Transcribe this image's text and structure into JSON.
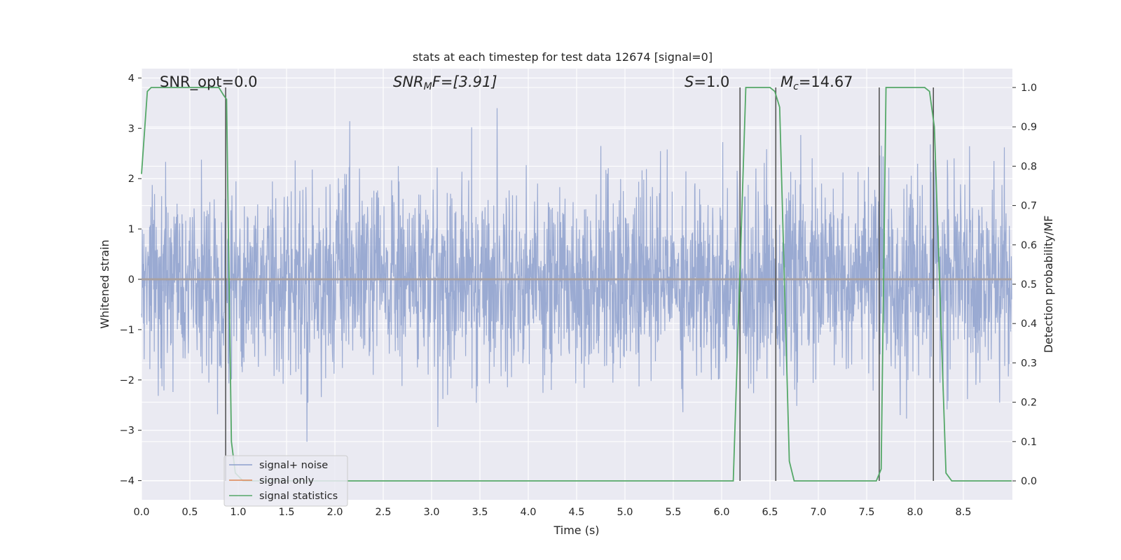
{
  "chart_data": {
    "type": "line",
    "title": "stats at each timestep for test data 12674 [signal=0]",
    "xlabel": "Time (s)",
    "ylabel": "Whitened strain",
    "ylabel_right": "Detection probability/MF",
    "xlim": [
      0.0,
      9.0
    ],
    "ylim": [
      -4.4,
      4.2
    ],
    "ylim_right": [
      -0.05,
      1.05
    ],
    "x_ticks": [
      "0.0",
      "0.5",
      "1.0",
      "1.5",
      "2.0",
      "2.5",
      "3.0",
      "3.5",
      "4.0",
      "4.5",
      "5.0",
      "5.5",
      "6.0",
      "6.5",
      "7.0",
      "7.5",
      "8.0",
      "8.5"
    ],
    "y_ticks": [
      "4",
      "3",
      "2",
      "1",
      "0",
      "−1",
      "−2",
      "−3",
      "−4"
    ],
    "y_right_ticks": [
      "1.0",
      "0.9",
      "0.8",
      "0.7",
      "0.6",
      "0.5",
      "0.4",
      "0.3",
      "0.2",
      "0.1",
      "0.0"
    ],
    "grid": true,
    "legend_position": "lower-left",
    "annotations": {
      "snr_opt": "SNR_opt=0.0",
      "snr_mf_a": "SNR",
      "snr_mf_sub": "M",
      "snr_mf_b": "F=[3.91]",
      "s_a": "S",
      "s_b": "=1.0",
      "mc_a": "M",
      "mc_sub": "c",
      "mc_b": "=14.67"
    },
    "series": [
      {
        "name": "signal+ noise",
        "color": "#8c9fcc",
        "description_values": "whitened noise, approx. zero-mean Gaussian, range about -3.8 to 3.4"
      },
      {
        "name": "signal only",
        "color": "#dd8452",
        "values_constant": 0
      },
      {
        "name": "signal statistics",
        "color": "#55a868",
        "x": [
          0.0,
          0.06,
          0.1,
          0.2,
          0.8,
          0.85,
          0.88,
          0.9,
          0.93,
          0.97,
          1.05,
          6.0,
          6.12,
          6.25,
          6.5,
          6.55,
          6.6,
          6.7,
          6.75,
          7.6,
          7.65,
          7.7,
          8.1,
          8.15,
          8.2,
          8.32,
          8.38,
          9.0
        ],
        "y": [
          0.78,
          0.99,
          1.0,
          1.0,
          1.0,
          0.98,
          0.97,
          0.6,
          0.1,
          0.02,
          0.0,
          0.0,
          0.0,
          1.0,
          1.0,
          0.99,
          0.95,
          0.05,
          0.0,
          0.0,
          0.03,
          1.0,
          1.0,
          0.99,
          0.9,
          0.02,
          0.0,
          0.0
        ]
      }
    ],
    "vertical_markers_x": [
      0.87,
      6.19,
      6.56,
      7.63,
      8.19
    ]
  },
  "colors": {
    "plot_bg": "#eaeaf2",
    "grid": "#ffffff",
    "noise": "#8c9fcc",
    "signal_only": "#dd8452",
    "statistics": "#55a868",
    "markers": "#555555"
  }
}
